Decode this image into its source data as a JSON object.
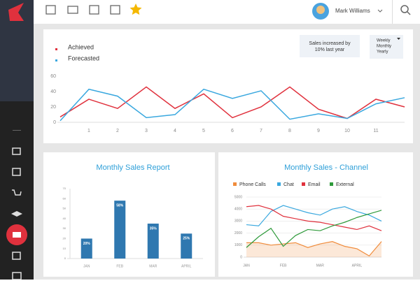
{
  "header": {
    "user": "Mark Williams"
  },
  "dropdown": [
    "Weekly",
    "Monthly",
    "Yearly"
  ],
  "chart_data": [
    {
      "type": "line",
      "annotation": "Sales increased by 10% last year",
      "categories": [
        null,
        "1",
        "2",
        "3",
        "4",
        "5",
        "6",
        "7",
        "8",
        "9",
        "10",
        "11",
        null
      ],
      "series": [
        {
          "name": "Achieved",
          "color": "#e0313d",
          "values": [
            7,
            30,
            18,
            46,
            18,
            37,
            6,
            20,
            46,
            17,
            5,
            30,
            20
          ]
        },
        {
          "name": "Forecasted",
          "color": "#3aa8df",
          "values": [
            2,
            43,
            34,
            6,
            10,
            43,
            31,
            41,
            4,
            11,
            5,
            24,
            32
          ]
        }
      ],
      "ylim": [
        0,
        60
      ],
      "yticks": [
        0,
        20,
        40,
        60
      ],
      "grid": false
    },
    {
      "type": "bar",
      "title": "Monthly Sales Report",
      "categories": [
        "JAN",
        "FEB",
        "MAR",
        "APRIL"
      ],
      "values": [
        20,
        58,
        35,
        25
      ],
      "value_labels": [
        "20%",
        "58%",
        "35%",
        "25%"
      ],
      "color": "#2f78b0",
      "ylim": [
        0,
        70
      ],
      "yticks": [
        0,
        10,
        20,
        30,
        40,
        50,
        60,
        70
      ],
      "grid": false
    },
    {
      "type": "line",
      "title": "Monthly Sales - Channel",
      "categories": [
        "JAN",
        null,
        null,
        "FEB",
        null,
        null,
        "MAR",
        null,
        null,
        "APRIL",
        null,
        null
      ],
      "series": [
        {
          "name": "Phone Calls",
          "color": "#f08c3c",
          "area": true,
          "values": [
            1200,
            1200,
            1000,
            1100,
            1200,
            800,
            1100,
            1300,
            900,
            700,
            100,
            1300
          ]
        },
        {
          "name": "Chat",
          "color": "#3aa8df",
          "values": [
            2700,
            2600,
            3800,
            4300,
            4000,
            3700,
            3500,
            4000,
            4200,
            3800,
            3500,
            3000
          ]
        },
        {
          "name": "Email",
          "color": "#e0313d",
          "values": [
            4200,
            4300,
            4000,
            3400,
            3200,
            3000,
            2900,
            2700,
            2500,
            2300,
            2600,
            2200
          ]
        },
        {
          "name": "External",
          "color": "#2e9a3a",
          "values": [
            800,
            1700,
            2400,
            900,
            1800,
            2300,
            2200,
            2600,
            2900,
            3300,
            3600,
            3900
          ]
        }
      ],
      "ylim": [
        0,
        5000
      ],
      "yticks": [
        0,
        1000,
        2000,
        3000,
        4000,
        5000
      ],
      "grid": true
    }
  ]
}
